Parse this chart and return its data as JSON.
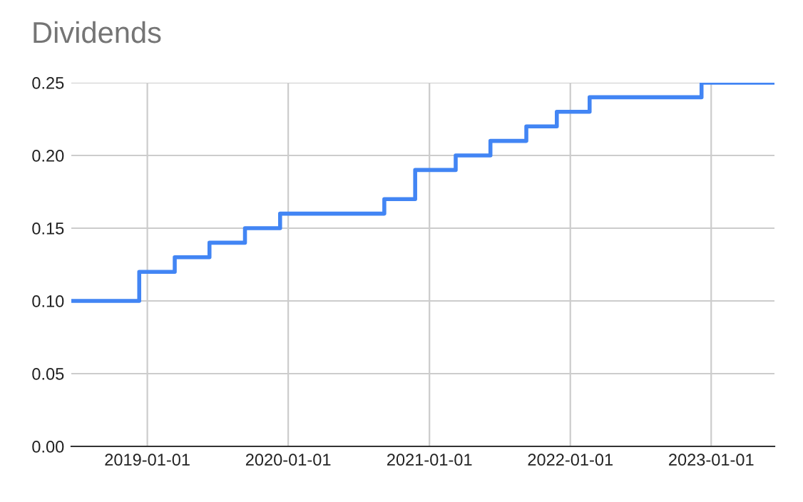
{
  "chart_data": {
    "type": "step",
    "title": "Dividends",
    "x": [
      "2018-06-18",
      "2018-12-11",
      "2019-03-13",
      "2019-06-11",
      "2019-09-11",
      "2019-12-11",
      "2020-09-06",
      "2020-11-25",
      "2021-03-10",
      "2021-06-08",
      "2021-09-09",
      "2021-11-27",
      "2022-02-20",
      "2022-12-07",
      "2023-06-14"
    ],
    "series": [
      {
        "color": "#4285f4",
        "values": [
          0.1,
          0.12,
          0.13,
          0.14,
          0.15,
          0.16,
          0.17,
          0.19,
          0.2,
          0.21,
          0.22,
          0.23,
          0.24,
          0.25,
          0.25
        ]
      }
    ],
    "xlim": [
      "2018-06-18",
      "2023-06-14"
    ],
    "xticks": [
      {
        "value": "2019-01-01",
        "label": "2019-01-01"
      },
      {
        "value": "2020-01-01",
        "label": "2020-01-01"
      },
      {
        "value": "2021-01-01",
        "label": "2021-01-01"
      },
      {
        "value": "2022-01-01",
        "label": "2022-01-01"
      },
      {
        "value": "2023-01-01",
        "label": "2023-01-01"
      }
    ],
    "ylim": [
      0,
      0.25
    ],
    "yticks": [
      {
        "value": 0,
        "label": "0.00"
      },
      {
        "value": 0.05,
        "label": "0.05"
      },
      {
        "value": 0.1,
        "label": "0.10"
      },
      {
        "value": 0.15,
        "label": "0.15"
      },
      {
        "value": 0.2,
        "label": "0.20"
      },
      {
        "value": 0.25,
        "label": "0.25"
      }
    ],
    "grid": true,
    "legend": false
  }
}
